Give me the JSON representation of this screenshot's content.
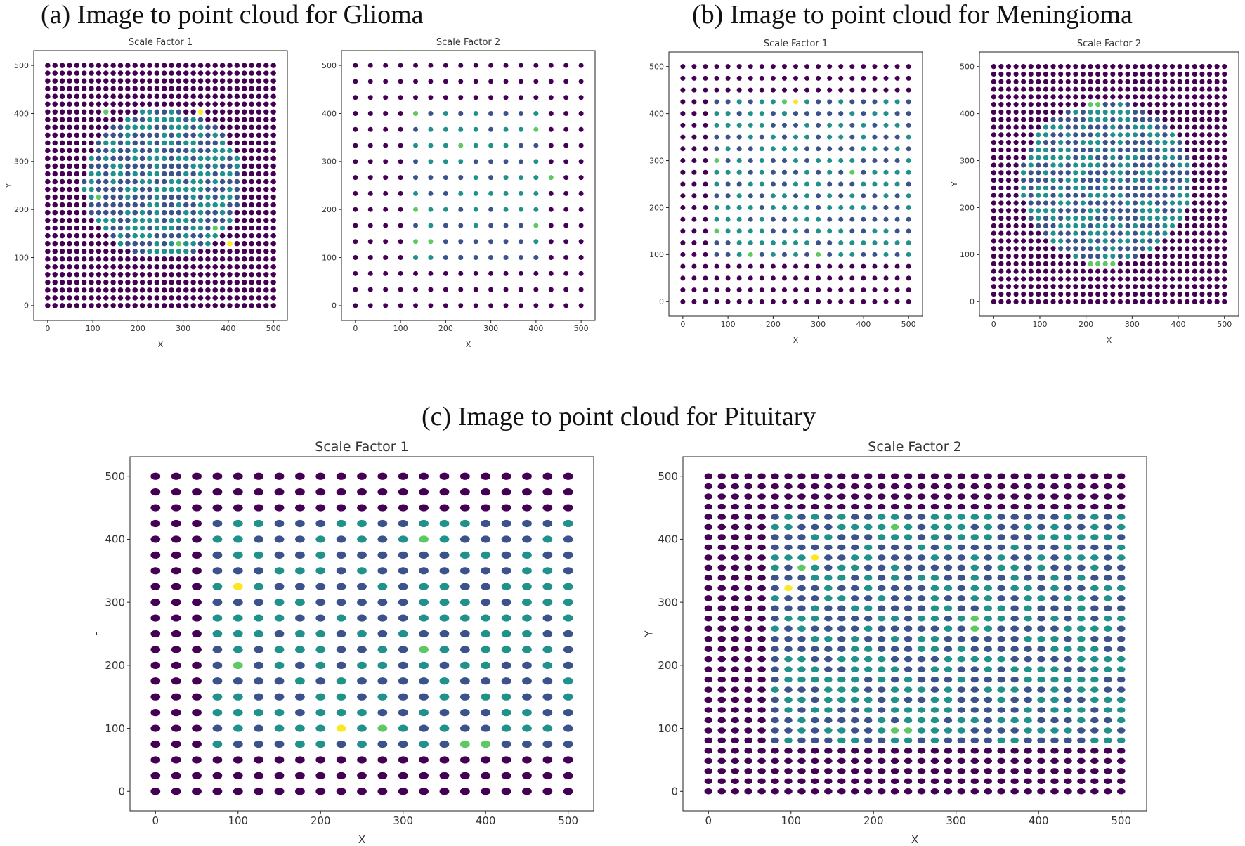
{
  "titles": {
    "a": "(a)   Image to point cloud for Glioma",
    "b": "(b)   Image to point cloud for  Meningioma",
    "c": "(c) Image to point cloud for Pituitary"
  },
  "colors": {
    "dark_purple": "#440154",
    "indigo": "#3b528b",
    "teal": "#21918c",
    "green": "#5ec962",
    "yellow": "#fde725"
  },
  "chart_data": [
    {
      "id": "glioma-sf1",
      "type": "scatter",
      "title": "Scale Factor 1",
      "xlabel": "X",
      "ylabel": "Y",
      "xlim": [
        0,
        500
      ],
      "ylim": [
        0,
        500
      ],
      "xticks": [
        0,
        100,
        200,
        300,
        400,
        500
      ],
      "yticks": [
        0,
        100,
        200,
        300,
        400,
        500
      ],
      "grid_step": 16.13,
      "grid_count": 32,
      "legend": "none",
      "colorscale": "viridis",
      "note_region": "rough-circular bright region around center (x 80-430, y 100-410)",
      "region": {
        "kind": "ellipse",
        "cx": 255,
        "cy": 255,
        "rx": 175,
        "ry": 155
      },
      "hotspots": [
        [
          339,
          403,
          1.0
        ],
        [
          129,
          403,
          0.75
        ],
        [
          371,
          161,
          0.9
        ],
        [
          403,
          129,
          0.95
        ],
        [
          113,
          226,
          0.8
        ],
        [
          290,
          129,
          0.8
        ]
      ]
    },
    {
      "id": "glioma-sf2",
      "type": "scatter",
      "title": "Scale Factor 2",
      "xlabel": "X",
      "ylabel": "",
      "xlim": [
        0,
        500
      ],
      "ylim": [
        0,
        500
      ],
      "xticks": [
        0,
        100,
        200,
        300,
        400,
        500
      ],
      "yticks": [
        0,
        100,
        200,
        300,
        400,
        500
      ],
      "grid_step": 33.33,
      "grid_count": 16,
      "legend": "none",
      "colorscale": "viridis",
      "region": {
        "kind": "rect",
        "x0": 100,
        "x1": 430,
        "y0": 95,
        "y1": 400
      },
      "hotspots": [
        [
          133,
          400,
          0.8
        ],
        [
          400,
          367,
          0.8
        ],
        [
          233,
          333,
          0.75
        ],
        [
          433,
          267,
          0.85
        ],
        [
          400,
          167,
          0.9
        ],
        [
          133,
          133,
          0.85
        ],
        [
          167,
          133,
          0.85
        ],
        [
          133,
          200,
          0.75
        ]
      ]
    },
    {
      "id": "meningioma-sf1",
      "type": "scatter",
      "title": "Scale Factor 1",
      "xlabel": "X",
      "ylabel": "",
      "xlim": [
        0,
        500
      ],
      "ylim": [
        0,
        500
      ],
      "xticks": [
        0,
        100,
        200,
        300,
        400,
        500
      ],
      "yticks": [
        0,
        100,
        200,
        300,
        400,
        500
      ],
      "grid_step": 25,
      "grid_count": 21,
      "legend": "none",
      "colorscale": "viridis",
      "region": {
        "kind": "rect",
        "x0": 70,
        "x1": 510,
        "y0": 95,
        "y1": 430
      },
      "hotspots": [
        [
          250,
          425,
          1.0
        ],
        [
          225,
          425,
          0.7
        ],
        [
          375,
          275,
          0.75
        ],
        [
          75,
          300,
          0.7
        ],
        [
          150,
          100,
          0.75
        ],
        [
          300,
          100,
          0.75
        ],
        [
          75,
          150,
          0.7
        ]
      ]
    },
    {
      "id": "meningioma-sf2",
      "type": "scatter",
      "title": "Scale Factor 2",
      "xlabel": "X",
      "ylabel": "Y",
      "xlim": [
        0,
        500
      ],
      "ylim": [
        0,
        500
      ],
      "xticks": [
        0,
        100,
        200,
        300,
        400,
        500
      ],
      "yticks": [
        0,
        100,
        200,
        300,
        400,
        500
      ],
      "grid_step": 16.13,
      "grid_count": 32,
      "legend": "none",
      "colorscale": "viridis",
      "region": {
        "kind": "ellipse",
        "cx": 245,
        "cy": 255,
        "rx": 185,
        "ry": 170
      },
      "hotspots": [
        [
          210,
          419,
          0.85
        ],
        [
          226,
          419,
          0.85
        ],
        [
          210,
          87,
          0.8
        ],
        [
          226,
          87,
          0.8
        ],
        [
          242,
          87,
          0.8
        ],
        [
          258,
          87,
          0.9
        ]
      ]
    },
    {
      "id": "pituitary-sf1",
      "type": "scatter",
      "title": "Scale Factor 1",
      "xlabel": "X",
      "ylabel": "-",
      "xlim": [
        0,
        500
      ],
      "ylim": [
        0,
        500
      ],
      "xticks": [
        0,
        100,
        200,
        300,
        400,
        500
      ],
      "yticks": [
        0,
        100,
        200,
        300,
        400,
        500
      ],
      "grid_step": 25,
      "grid_count": 21,
      "legend": "none",
      "colorscale": "viridis",
      "region": {
        "kind": "rect",
        "x0": 70,
        "x1": 510,
        "y0": 70,
        "y1": 430
      },
      "hotspots": [
        [
          100,
          325,
          1.0
        ],
        [
          225,
          100,
          1.0
        ],
        [
          275,
          100,
          0.85
        ],
        [
          325,
          225,
          0.8
        ],
        [
          100,
          200,
          0.75
        ],
        [
          400,
          75,
          0.75
        ],
        [
          375,
          75,
          0.7
        ],
        [
          325,
          400,
          0.7
        ]
      ]
    },
    {
      "id": "pituitary-sf2",
      "type": "scatter",
      "title": "Scale Factor 2",
      "xlabel": "X",
      "ylabel": "Y",
      "xlim": [
        0,
        500
      ],
      "ylim": [
        0,
        500
      ],
      "xticks": [
        0,
        100,
        200,
        300,
        400,
        500
      ],
      "yticks": [
        0,
        100,
        200,
        300,
        400,
        500
      ],
      "grid_step": 16.13,
      "grid_count": 32,
      "legend": "none",
      "colorscale": "viridis",
      "region": {
        "kind": "rect",
        "x0": 80,
        "x1": 505,
        "y0": 80,
        "y1": 440
      },
      "hotspots": [
        [
          129,
          371,
          1.0
        ],
        [
          97,
          323,
          1.0
        ],
        [
          113,
          355,
          0.9
        ],
        [
          226,
          419,
          0.8
        ],
        [
          323,
          266,
          0.75
        ],
        [
          226,
          97,
          0.8
        ],
        [
          242,
          97,
          0.85
        ]
      ]
    }
  ]
}
